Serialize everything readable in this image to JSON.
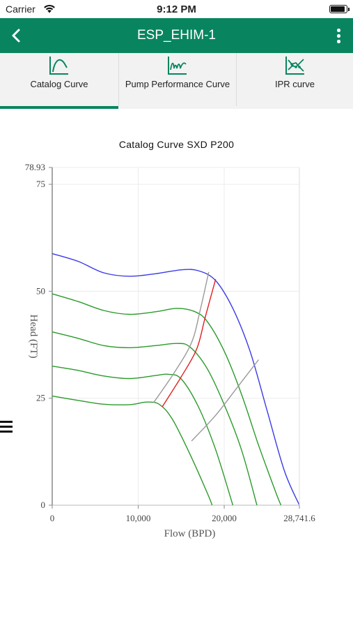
{
  "status": {
    "carrier": "Carrier",
    "time": "9:12 PM"
  },
  "header": {
    "title": "ESP_EHIM-1"
  },
  "tabs": [
    {
      "label": "Catalog Curve",
      "icon": "catalog-curve-icon",
      "active": true
    },
    {
      "label": "Pump Performance Curve",
      "icon": "performance-curve-icon",
      "active": false
    },
    {
      "label": "IPR curve",
      "icon": "ipr-curve-icon",
      "active": false
    }
  ],
  "colors": {
    "accent": "#08855f",
    "max_curve": "#3a3ae6",
    "speed_curves": "#2a9a2a",
    "bep_line": "#e02020",
    "limit_lines": "#999999"
  },
  "chart_data": {
    "type": "line",
    "title": "Catalog Curve SXD P200",
    "xlabel": "Flow (BPD)",
    "ylabel": "Head (FT)",
    "xlim": [
      0,
      28741.6
    ],
    "ylim": [
      0,
      78.93
    ],
    "x_ticks": [
      "0",
      "10,000",
      "20,000",
      "28,741.6"
    ],
    "x_tick_values": [
      0,
      10000,
      20000,
      28741.6
    ],
    "y_ticks": [
      "0",
      "25",
      "50",
      "75",
      "78.93"
    ],
    "y_tick_values": [
      0,
      25,
      50,
      75,
      78.93
    ],
    "grid": true,
    "series": [
      {
        "color": "#3a3ae6",
        "points": [
          [
            0,
            58.8
          ],
          [
            3000,
            57.0
          ],
          [
            6000,
            54.3
          ],
          [
            9000,
            53.5
          ],
          [
            12000,
            54.1
          ],
          [
            15000,
            55.0
          ],
          [
            17000,
            54.8
          ],
          [
            19000,
            52.5
          ],
          [
            21000,
            46.0
          ],
          [
            23000,
            36.0
          ],
          [
            25000,
            22.0
          ],
          [
            27000,
            8.0
          ],
          [
            28741.6,
            0
          ]
        ]
      },
      {
        "color": "#2a9a2a",
        "points": [
          [
            0,
            49.4
          ],
          [
            3000,
            47.6
          ],
          [
            6000,
            45.5
          ],
          [
            9000,
            44.6
          ],
          [
            12000,
            45.2
          ],
          [
            14500,
            46.0
          ],
          [
            16500,
            45.3
          ],
          [
            18000,
            43.0
          ],
          [
            20000,
            36.0
          ],
          [
            22000,
            26.0
          ],
          [
            24000,
            14.0
          ],
          [
            26000,
            3.0
          ],
          [
            26600,
            0
          ]
        ]
      },
      {
        "color": "#2a9a2a",
        "points": [
          [
            0,
            40.5
          ],
          [
            3000,
            39.0
          ],
          [
            6000,
            37.3
          ],
          [
            9000,
            36.8
          ],
          [
            12000,
            37.3
          ],
          [
            14500,
            37.8
          ],
          [
            16000,
            37.0
          ],
          [
            18000,
            32.0
          ],
          [
            20000,
            23.5
          ],
          [
            22000,
            13.0
          ],
          [
            23800,
            0
          ]
        ]
      },
      {
        "color": "#2a9a2a",
        "points": [
          [
            0,
            32.5
          ],
          [
            3000,
            31.5
          ],
          [
            6000,
            30.2
          ],
          [
            9000,
            29.6
          ],
          [
            12000,
            30.3
          ],
          [
            13500,
            30.6
          ],
          [
            15000,
            29.5
          ],
          [
            17000,
            23.0
          ],
          [
            19000,
            13.0
          ],
          [
            21000,
            0
          ]
        ]
      },
      {
        "color": "#2a9a2a",
        "points": [
          [
            0,
            25.5
          ],
          [
            3000,
            24.5
          ],
          [
            6000,
            23.6
          ],
          [
            9000,
            23.5
          ],
          [
            11000,
            24.1
          ],
          [
            12500,
            23.5
          ],
          [
            14000,
            20.0
          ],
          [
            16000,
            12.0
          ],
          [
            18000,
            3.0
          ],
          [
            18600,
            0
          ]
        ]
      },
      {
        "color": "#999999",
        "points": [
          [
            11800,
            24.0
          ],
          [
            14200,
            31.0
          ],
          [
            16200,
            38.0
          ],
          [
            17200,
            45.5
          ],
          [
            18200,
            54.5
          ]
        ]
      },
      {
        "color": "#e02020",
        "points": [
          [
            12800,
            23.0
          ],
          [
            15000,
            30.0
          ],
          [
            16800,
            36.5
          ],
          [
            17800,
            44.0
          ],
          [
            19000,
            52.8
          ]
        ]
      },
      {
        "color": "#999999",
        "points": [
          [
            16200,
            15.0
          ],
          [
            19000,
            21.0
          ],
          [
            21500,
            27.5
          ],
          [
            24000,
            34.0
          ]
        ]
      }
    ]
  }
}
